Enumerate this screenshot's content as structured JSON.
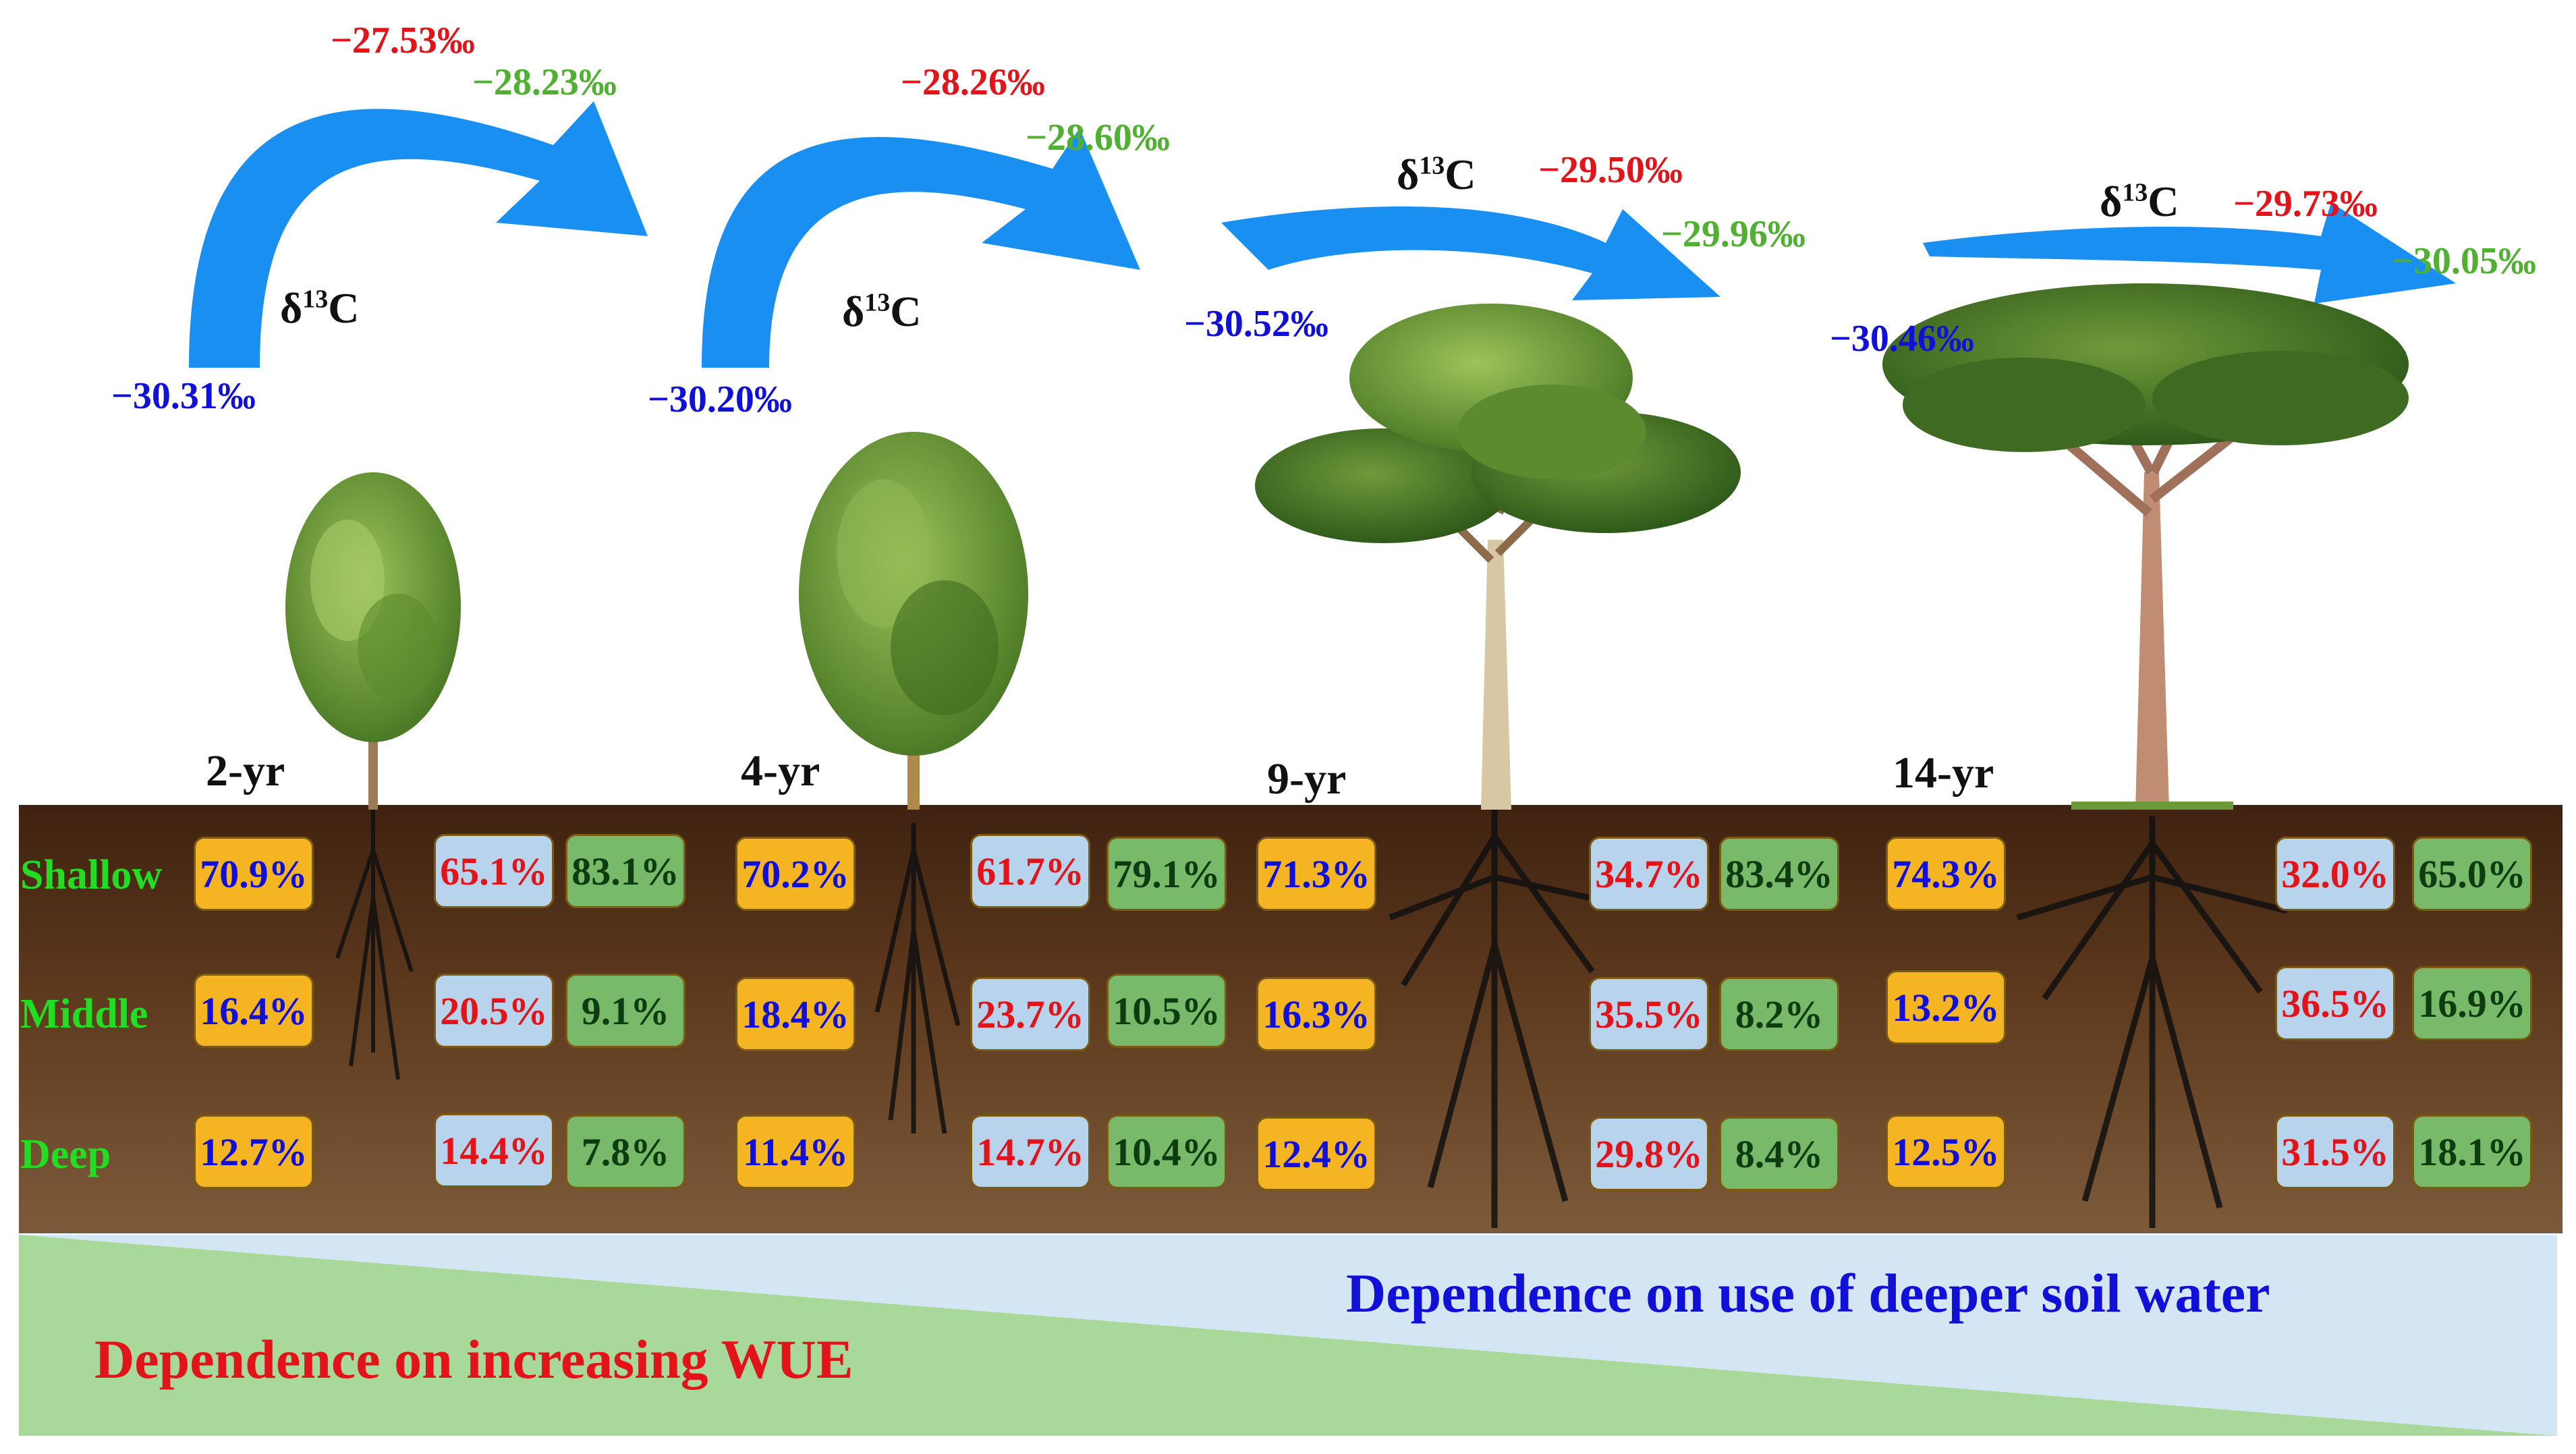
{
  "colors": {
    "arrow": "#1a8ff2",
    "soil": "#5a3418",
    "wedge_green": "#a8d89a",
    "wedge_blue": "#d4e6f4"
  },
  "layers": [
    "Shallow",
    "Middle",
    "Deep"
  ],
  "isotope_symbol": {
    "delta": "δ",
    "mass": "13",
    "element": "C"
  },
  "stands": [
    {
      "age": "2-yr",
      "d13c_low": "−30.31‰",
      "d13c_red": "−27.53‰",
      "d13c_green": "−28.23‰",
      "orange": [
        "70.9%",
        "16.4%",
        "12.7%"
      ],
      "blue": [
        "65.1%",
        "20.5%",
        "14.4%"
      ],
      "green": [
        "83.1%",
        "9.1%",
        "7.8%"
      ]
    },
    {
      "age": "4-yr",
      "d13c_low": "−30.20‰",
      "d13c_red": "−28.26‰",
      "d13c_green": "−28.60‰",
      "orange": [
        "70.2%",
        "18.4%",
        "11.4%"
      ],
      "blue": [
        "61.7%",
        "23.7%",
        "14.7%"
      ],
      "green": [
        "79.1%",
        "10.5%",
        "10.4%"
      ]
    },
    {
      "age": "9-yr",
      "d13c_low": "−30.52‰",
      "d13c_red": "−29.50‰",
      "d13c_green": "−29.96‰",
      "orange": [
        "71.3%",
        "16.3%",
        "12.4%"
      ],
      "blue": [
        "34.7%",
        "35.5%",
        "29.8%"
      ],
      "green": [
        "83.4%",
        "8.2%",
        "8.4%"
      ]
    },
    {
      "age": "14-yr",
      "d13c_low": "−30.46‰",
      "d13c_red": "−29.73‰",
      "d13c_green": "−30.05‰",
      "orange": [
        "74.3%",
        "13.2%",
        "12.5%"
      ],
      "blue": [
        "32.0%",
        "36.5%",
        "31.5%"
      ],
      "green": [
        "65.0%",
        "16.9%",
        "18.1%"
      ]
    }
  ],
  "bottom": {
    "wue": "Dependence on increasing WUE",
    "deep": "Dependence on use of deeper soil water"
  }
}
